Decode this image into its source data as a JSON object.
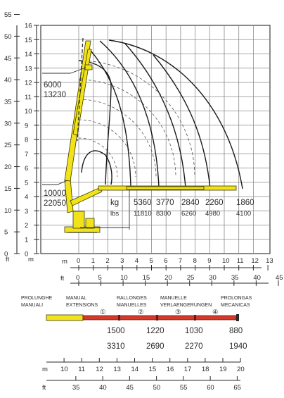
{
  "left_axis": {
    "ft_label": "ft",
    "m_label": "m",
    "ft_ticks": [
      "55",
      "50",
      "45",
      "40",
      "35",
      "30",
      "25",
      "20",
      "15",
      "10",
      "5",
      "0"
    ],
    "m_ticks": [
      "16",
      "15",
      "14",
      "13",
      "12",
      "11",
      "10",
      "9",
      "8",
      "7",
      "6",
      "5",
      "4",
      "3",
      "2",
      "1",
      "0"
    ]
  },
  "bottom_axis": {
    "m_label": "m",
    "ft_label": "ft",
    "m_ticks": [
      "0",
      "1",
      "2",
      "3",
      "4",
      "5",
      "6",
      "7",
      "8",
      "9",
      "10",
      "11",
      "12",
      "13"
    ],
    "ft_ticks": [
      "0",
      "5",
      "10",
      "15",
      "20",
      "25",
      "30",
      "35",
      "40",
      "45"
    ]
  },
  "loads": {
    "upper": {
      "kg": "6000",
      "lbs": "13230"
    },
    "lower": {
      "kg": "10000",
      "lbs": "22050"
    },
    "unit_kg": "kg",
    "unit_lbs": "lbs",
    "columns": [
      {
        "kg": "5360",
        "lbs": "11810"
      },
      {
        "kg": "3770",
        "lbs": "8300"
      },
      {
        "kg": "2840",
        "lbs": "6260"
      },
      {
        "kg": "2260",
        "lbs": "4980"
      },
      {
        "kg": "1860",
        "lbs": "4100"
      }
    ]
  },
  "extensions": {
    "headers": [
      {
        "l1": "PROLUNGHE",
        "l2": "MANUALI"
      },
      {
        "l1": "MANUAL",
        "l2": "EXTENSIONS"
      },
      {
        "l1": "RALLONGES",
        "l2": "MANUELLES"
      },
      {
        "l1": "MANUELLE",
        "l2": "VERLAENGERUNGEN"
      },
      {
        "l1": "PROLONGAS",
        "l2": "MECANICAS"
      }
    ],
    "numbers": [
      "①",
      "②",
      "③",
      "④"
    ],
    "kg": [
      "1500",
      "1220",
      "1030",
      "880"
    ],
    "lbs": [
      "3310",
      "2690",
      "2270",
      "1940"
    ]
  },
  "lower_scale": {
    "m_label": "m",
    "ft_label": "ft",
    "m_ticks": [
      "10",
      "11",
      "12",
      "13",
      "14",
      "15",
      "16",
      "17",
      "18",
      "19",
      "20"
    ],
    "ft_ticks": [
      "35",
      "40",
      "45",
      "50",
      "55",
      "60",
      "65"
    ]
  }
}
